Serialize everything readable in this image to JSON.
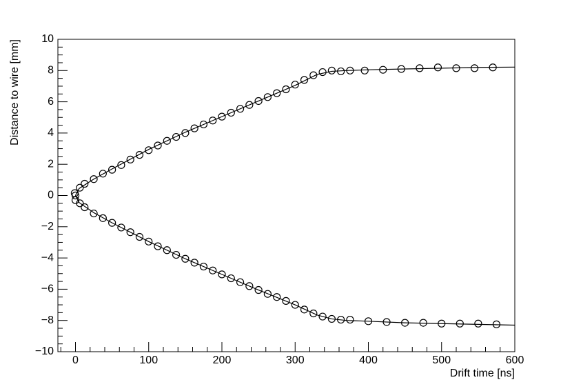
{
  "chart_data": {
    "type": "scatter",
    "x_label": "Drift time [ns]",
    "y_label": "Distance to wire [mm]",
    "xlim": [
      -24,
      600
    ],
    "ylim": [
      -10,
      10
    ],
    "xticks": [
      0,
      100,
      200,
      300,
      400,
      500,
      600
    ],
    "yticks": [
      {
        "value": -10,
        "label": "−10"
      },
      {
        "value": -8,
        "label": "−8"
      },
      {
        "value": -6,
        "label": "−6"
      },
      {
        "value": -4,
        "label": "−4"
      },
      {
        "value": -2,
        "label": "−2"
      },
      0,
      2,
      4,
      6,
      8,
      10
    ],
    "x_minor_divisions": 5,
    "y_minor_divisions": 4,
    "series": [
      {
        "style": "marker",
        "color": "#000000",
        "x": [
          -1,
          0,
          6,
          12.5,
          25,
          37.5,
          50,
          62.5,
          75,
          87.5,
          100,
          112.5,
          125,
          137.5,
          150,
          162.5,
          175,
          187.5,
          200,
          212.5,
          225,
          237.5,
          250,
          262.5,
          275,
          287.5,
          300,
          312.5,
          325,
          337.5,
          350,
          362.5,
          375,
          395,
          420,
          445,
          470,
          495,
          520,
          545,
          570
        ],
        "values": [
          0.15,
          0.0,
          0.5,
          0.75,
          1.05,
          1.4,
          1.65,
          1.95,
          2.3,
          2.6,
          2.9,
          3.2,
          3.5,
          3.75,
          4.0,
          4.3,
          4.55,
          4.8,
          5.05,
          5.3,
          5.55,
          5.8,
          6.05,
          6.3,
          6.55,
          6.8,
          7.1,
          7.4,
          7.7,
          7.9,
          8.0,
          7.95,
          8.0,
          8.0,
          8.05,
          8.1,
          8.15,
          8.2,
          8.15,
          8.15,
          8.2
        ]
      },
      {
        "style": "marker",
        "color": "#000000",
        "x": [
          0,
          6,
          12.5,
          25,
          37.5,
          50,
          62.5,
          75,
          87.5,
          100,
          112.5,
          125,
          137.5,
          150,
          162.5,
          175,
          187.5,
          200,
          212.5,
          225,
          237.5,
          250,
          262.5,
          275,
          287.5,
          300,
          312.5,
          325,
          337.5,
          350,
          362.5,
          375,
          400,
          425,
          450,
          475,
          500,
          525,
          550,
          575
        ],
        "values": [
          -0.3,
          -0.5,
          -0.75,
          -1.15,
          -1.45,
          -1.75,
          -2.05,
          -2.35,
          -2.65,
          -2.95,
          -3.25,
          -3.5,
          -3.8,
          -4.05,
          -4.3,
          -4.55,
          -4.8,
          -5.05,
          -5.3,
          -5.55,
          -5.8,
          -6.05,
          -6.3,
          -6.5,
          -6.75,
          -7.0,
          -7.3,
          -7.55,
          -7.75,
          -7.9,
          -7.95,
          -7.95,
          -8.05,
          -8.1,
          -8.15,
          -8.15,
          -8.2,
          -8.2,
          -8.2,
          -8.25
        ]
      },
      {
        "style": "line",
        "color": "#000000",
        "x": [
          0,
          5,
          25,
          50,
          100,
          150,
          200,
          250,
          300,
          330,
          350,
          370,
          400,
          450,
          500,
          550,
          600
        ],
        "values": [
          0,
          0.45,
          1.05,
          1.7,
          2.95,
          4.05,
          5.05,
          6.05,
          7.05,
          7.75,
          7.95,
          8.0,
          8.05,
          8.1,
          8.15,
          8.2,
          8.22
        ]
      },
      {
        "style": "line",
        "color": "#000000",
        "x": [
          0,
          5,
          25,
          50,
          100,
          150,
          200,
          250,
          300,
          330,
          350,
          370,
          400,
          450,
          500,
          550,
          600
        ],
        "values": [
          0,
          -0.45,
          -1.1,
          -1.75,
          -2.95,
          -4.05,
          -5.05,
          -6.05,
          -7.0,
          -7.65,
          -7.9,
          -8.0,
          -8.05,
          -8.15,
          -8.2,
          -8.25,
          -8.3
        ]
      }
    ]
  }
}
